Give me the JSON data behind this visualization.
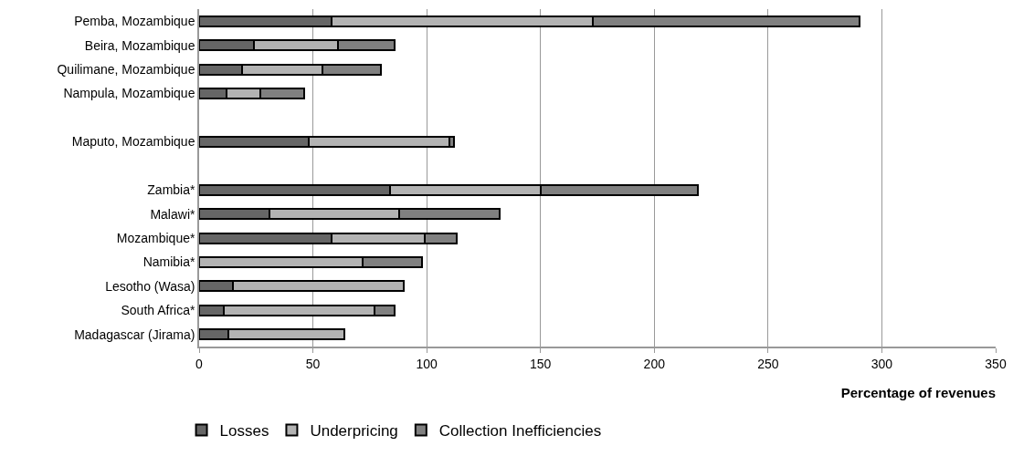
{
  "chart_data": {
    "type": "bar",
    "orientation": "horizontal",
    "stacked": true,
    "xlabel": "Percentage of revenues",
    "categories": [
      "Pemba, Mozambique",
      "Beira, Mozambique",
      "Quilimane, Mozambique",
      "Nampula, Mozambique",
      null,
      "Maputo, Mozambique",
      null,
      "Zambia*",
      "Malawi*",
      "Mozambique*",
      "Namibia*",
      "Lesotho (Wasa)",
      "South Africa*",
      "Madagascar (Jirama)"
    ],
    "series": [
      {
        "name": "Losses",
        "color": "#666666",
        "values": [
          58,
          24,
          19,
          12,
          null,
          48,
          null,
          84,
          31,
          58,
          0,
          15,
          11,
          13
        ]
      },
      {
        "name": "Underpricing",
        "color": "#b3b3b3",
        "values": [
          115,
          37,
          35,
          15,
          null,
          62,
          null,
          66,
          57,
          41,
          72,
          75,
          66,
          51
        ]
      },
      {
        "name": "Collection Inefficiencies",
        "color": "#808080",
        "values": [
          117,
          25,
          26,
          19,
          null,
          2,
          null,
          69,
          44,
          14,
          26,
          0,
          9,
          0
        ]
      }
    ],
    "xlim": [
      0,
      350
    ],
    "xticks": [
      0,
      50,
      100,
      150,
      200,
      250,
      300,
      350
    ],
    "grid": "x",
    "legend": "bottom"
  }
}
